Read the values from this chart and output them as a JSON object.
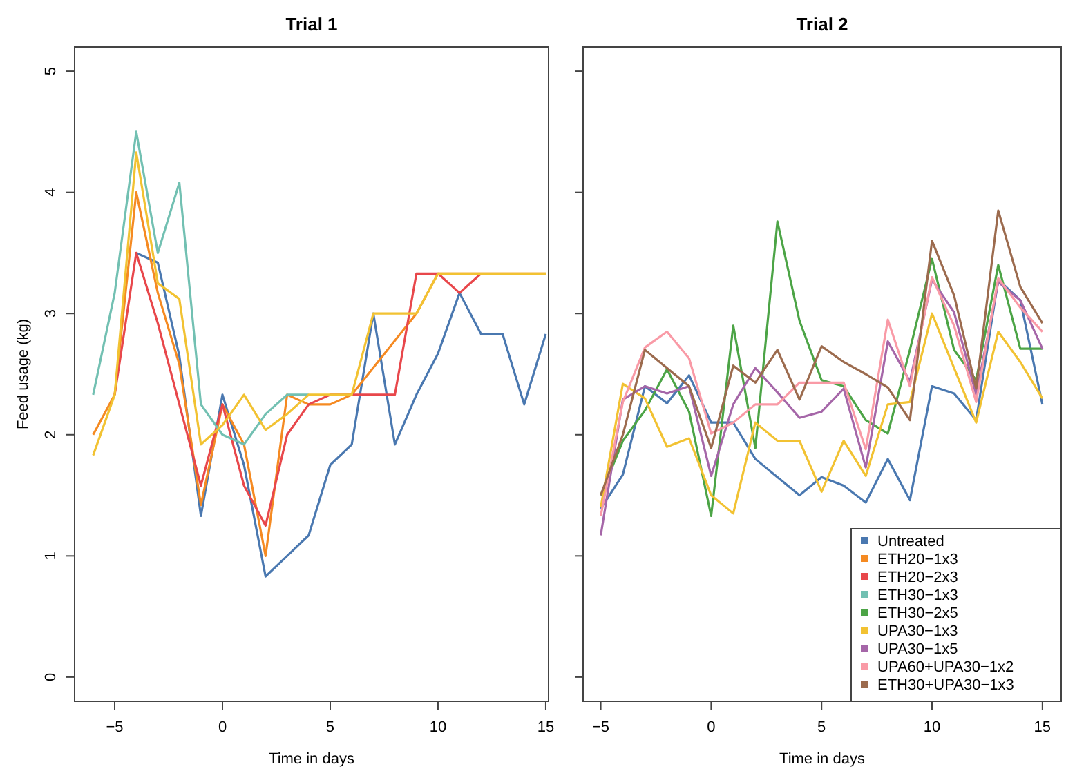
{
  "chart_data": [
    {
      "type": "line",
      "title": "Trial 1",
      "xlabel": "Time in days",
      "ylabel": "Feed usage (kg)",
      "x": [
        -6,
        -5,
        -4,
        -3,
        -2,
        -1,
        0,
        1,
        2,
        3,
        4,
        5,
        6,
        7,
        8,
        9,
        10,
        11,
        12,
        13,
        14,
        15
      ],
      "xlim": [
        -6.86,
        15.13
      ],
      "ylim": [
        -0.2,
        5.2
      ],
      "xticks": [
        -5,
        0,
        5,
        10,
        15
      ],
      "yticks": [
        0,
        1,
        2,
        3,
        4,
        5
      ],
      "legend": false,
      "series": [
        {
          "color": "#4a78b0",
          "x": [
            -4,
            -3,
            -2,
            -1,
            0,
            1,
            2,
            3,
            4,
            5,
            6,
            7,
            8,
            9,
            10,
            11,
            12,
            13,
            14,
            15
          ],
          "values": [
            3.5,
            3.42,
            2.65,
            1.33,
            2.33,
            1.75,
            0.83,
            1.0,
            1.17,
            1.75,
            1.92,
            3.0,
            1.92,
            2.33,
            2.67,
            3.17,
            2.83,
            2.83,
            2.25,
            2.83
          ]
        },
        {
          "color": "#f58a22",
          "x": [
            -6,
            -5,
            -4,
            -3,
            -2,
            -1,
            0,
            1,
            2,
            3,
            4,
            5,
            6,
            9,
            10,
            11,
            12,
            13,
            14,
            15
          ],
          "values": [
            2.0,
            2.33,
            4.0,
            3.17,
            2.58,
            1.42,
            2.25,
            1.92,
            1.0,
            2.33,
            2.25,
            2.25,
            2.33,
            3.0,
            3.33,
            3.33,
            3.33,
            3.33,
            3.33,
            3.33
          ]
        },
        {
          "color": "#e8474b",
          "x": [
            -5,
            -4,
            -3,
            -2,
            -1,
            0,
            1,
            2,
            3,
            4,
            5,
            6,
            7,
            8,
            9,
            10,
            11,
            12
          ],
          "values": [
            2.33,
            3.5,
            2.92,
            2.25,
            1.58,
            2.25,
            1.58,
            1.25,
            2.0,
            2.25,
            2.33,
            2.33,
            2.33,
            2.33,
            3.33,
            3.33,
            3.17,
            3.33
          ]
        },
        {
          "color": "#72c0b2",
          "x": [
            -6,
            -5,
            -4,
            -3,
            -2,
            -1,
            0,
            1,
            2,
            3,
            4
          ],
          "values": [
            2.33,
            3.17,
            4.5,
            3.5,
            4.08,
            2.25,
            2.0,
            1.92,
            2.17,
            2.33,
            2.33
          ]
        },
        {
          "color": "#f2c232",
          "values": [
            1.83,
            2.33,
            4.33,
            3.25,
            3.12,
            1.92,
            2.08,
            2.33,
            2.04,
            2.17,
            2.33,
            2.33,
            2.33,
            3.0,
            3.0,
            3.0,
            3.33,
            3.33,
            3.33,
            3.33,
            3.33,
            3.33
          ]
        }
      ]
    },
    {
      "type": "line",
      "title": "Trial 2",
      "xlabel": "Time in days",
      "x": [
        -5,
        -4,
        -3,
        -2,
        -1,
        0,
        1,
        2,
        3,
        4,
        5,
        6,
        7,
        8,
        9,
        10,
        11,
        12,
        13,
        14,
        15
      ],
      "xlim": [
        -5.8,
        15.85
      ],
      "ylim": [
        -0.2,
        5.2
      ],
      "xticks": [
        -5,
        0,
        5,
        10,
        15
      ],
      "yticks": [
        0,
        1,
        2,
        3,
        4,
        5
      ],
      "tick_labels": "x",
      "legend": "bottom right",
      "series": [
        {
          "name": "Untreated",
          "color": "#4a78b0",
          "values": [
            1.39,
            1.67,
            2.4,
            2.26,
            2.49,
            2.1,
            2.1,
            1.8,
            1.65,
            1.5,
            1.65,
            1.58,
            1.44,
            1.8,
            1.46,
            2.4,
            2.34,
            2.12,
            3.28,
            3.11,
            2.25
          ]
        },
        {
          "name": "ETH20−1x3",
          "color": "#f58a22",
          "values": [
            null,
            null,
            null,
            null,
            null,
            null,
            null,
            null,
            null,
            null,
            null,
            null,
            null,
            null,
            null,
            null,
            null,
            null,
            null,
            null,
            null
          ]
        },
        {
          "name": "ETH20−2x3",
          "color": "#e8474b",
          "values": [
            null,
            null,
            null,
            null,
            null,
            null,
            null,
            null,
            null,
            null,
            null,
            null,
            null,
            null,
            null,
            null,
            null,
            null,
            null,
            null,
            null
          ]
        },
        {
          "name": "ETH30−1x3",
          "color": "#72c0b2",
          "values": [
            null,
            null,
            null,
            null,
            null,
            null,
            null,
            null,
            null,
            null,
            null,
            null,
            null,
            null,
            null,
            null,
            null,
            null,
            null,
            null,
            null
          ]
        },
        {
          "name": "ETH30−2x5",
          "color": "#4ca446",
          "values": [
            1.5,
            1.95,
            2.2,
            2.54,
            2.19,
            1.33,
            2.9,
            1.89,
            3.76,
            2.94,
            2.45,
            2.4,
            2.12,
            2.01,
            2.7,
            3.45,
            2.7,
            2.45,
            3.4,
            2.71,
            2.71
          ]
        },
        {
          "name": "UPA30−1x3",
          "color": "#f2c232",
          "values": [
            1.4,
            2.42,
            2.3,
            1.9,
            1.97,
            1.5,
            1.35,
            2.1,
            1.95,
            1.95,
            1.53,
            1.95,
            1.66,
            2.25,
            2.27,
            3.0,
            2.55,
            2.1,
            2.85,
            2.6,
            2.3
          ]
        },
        {
          "name": "UPA30−1x5",
          "color": "#a566a8",
          "values": [
            1.17,
            2.29,
            2.4,
            2.34,
            2.4,
            1.66,
            2.25,
            2.55,
            2.35,
            2.14,
            2.19,
            2.38,
            1.73,
            2.77,
            2.44,
            3.28,
            3.01,
            2.33,
            3.26,
            3.11,
            2.71
          ]
        },
        {
          "name": "UPA60+UPA30−1x2",
          "color": "#f99aa6",
          "values": [
            1.33,
            2.27,
            2.72,
            2.85,
            2.63,
            2.01,
            2.1,
            2.25,
            2.25,
            2.43,
            2.43,
            2.43,
            1.88,
            2.95,
            2.4,
            3.3,
            2.9,
            2.27,
            3.29,
            3.05,
            2.85
          ]
        },
        {
          "name": "ETH30+UPA30−1x3",
          "color": "#9c6b4e",
          "values": [
            1.5,
            2.0,
            2.7,
            2.55,
            2.4,
            1.89,
            2.57,
            2.43,
            2.7,
            2.29,
            2.73,
            2.6,
            2.5,
            2.39,
            2.12,
            3.6,
            3.15,
            2.38,
            3.85,
            3.22,
            2.92
          ]
        }
      ]
    }
  ]
}
